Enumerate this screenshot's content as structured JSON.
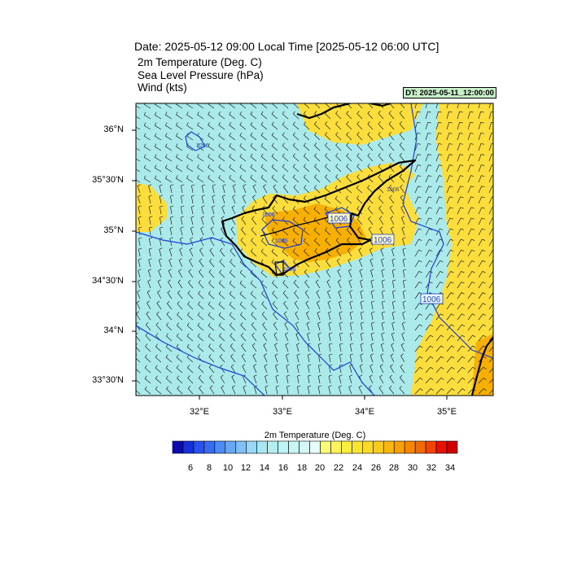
{
  "header": {
    "title": "Date: 2025-05-12  09:00 Local Time [2025-05-12  06:00 UTC]",
    "subtitles": [
      "2m Temperature (Deg. C)",
      "Sea Level Pressure   (hPa)",
      "Wind   (kts)"
    ],
    "dt_badge": "DT: 2025-05-11_12:00:00"
  },
  "map": {
    "lat_labels": [
      "36°N",
      "35°30'N",
      "35°N",
      "34°30'N",
      "34°N",
      "33°30'N"
    ],
    "lon_labels": [
      "32°E",
      "33°E",
      "34°E",
      "35°E"
    ],
    "isobar_labels": [
      "1006",
      "1006",
      "1006",
      "1006",
      "1006",
      "1006",
      "1006",
      "1006"
    ],
    "colors": {
      "sea_fill": "#aaeaea",
      "warm_fill": "#fbde3c",
      "hot_fill": "#f7b000",
      "isobar": "#1b3ed8",
      "coast": "#000000"
    }
  },
  "colorbar": {
    "title": "2m Temperature (Deg. C)",
    "ticks": [
      "6",
      "8",
      "10",
      "12",
      "14",
      "16",
      "18",
      "20",
      "22",
      "24",
      "26",
      "28",
      "30",
      "32",
      "34"
    ],
    "colors": [
      "#0b0bb0",
      "#1830d8",
      "#2a50f0",
      "#3a6cf0",
      "#4c8cf4",
      "#66a8f6",
      "#80c0f8",
      "#9ad6f8",
      "#a8e6f0",
      "#b4eef0",
      "#bff4f4",
      "#c8f4f4",
      "#d4f8f8",
      "#e4fcfc",
      "#fbfa7a",
      "#fbf45a",
      "#fbee3c",
      "#fbe530",
      "#fbdb28",
      "#f9cc1a",
      "#f8b810",
      "#f8a008",
      "#f68804",
      "#f46a00",
      "#f24400",
      "#e81000",
      "#d00000"
    ]
  }
}
